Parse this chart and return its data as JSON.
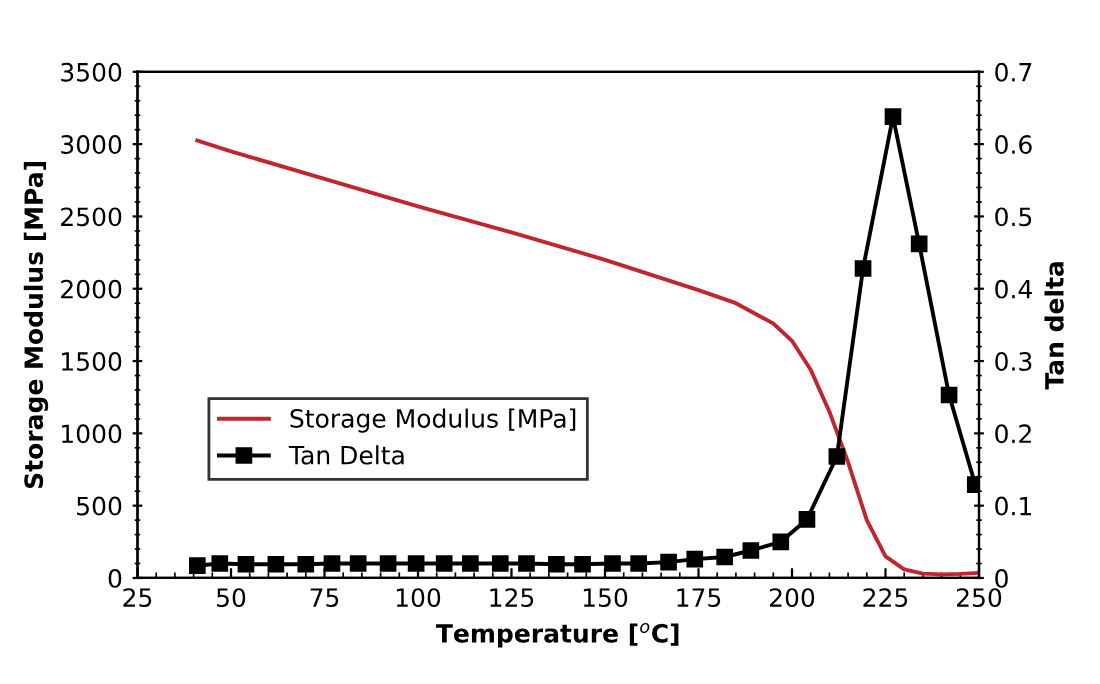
{
  "chart_data": {
    "type": "line",
    "xlabel": "Temperature [$^{o}$C]",
    "ylabel": "Storage Modulus [MPa]",
    "y2label": "Tan delta",
    "xlim": [
      25,
      250
    ],
    "xticks": [
      25,
      50,
      75,
      100,
      125,
      150,
      175,
      200,
      225,
      250
    ],
    "ylim": [
      0,
      3500
    ],
    "yticks": [
      0,
      500,
      1000,
      1500,
      2000,
      2500,
      3000,
      3500
    ],
    "y2lim": [
      0,
      0.7
    ],
    "y2ticks": [
      0,
      0.1,
      0.2,
      0.3,
      0.4,
      0.5,
      0.6,
      0.7
    ],
    "grid": false,
    "legend": "lower left",
    "series": [
      {
        "name": "Storage Modulus [MPa]",
        "color": "#c0262d",
        "marker": "none",
        "x": [
          41,
          50,
          75,
          100,
          125,
          150,
          175,
          185,
          195,
          200,
          205,
          210,
          215,
          220,
          225,
          230,
          235,
          240,
          245,
          250
        ],
        "values": [
          3025,
          2950,
          2760,
          2570,
          2390,
          2200,
          1990,
          1900,
          1760,
          1640,
          1440,
          1150,
          800,
          400,
          150,
          60,
          30,
          25,
          28,
          35
        ]
      },
      {
        "name": "Tan Delta",
        "color": "#000000",
        "marker": "square",
        "axis": "y2",
        "x": [
          41,
          47,
          54,
          62,
          70,
          77,
          84,
          92,
          99.5,
          107,
          114,
          122,
          129,
          137,
          144,
          152,
          159,
          167,
          174,
          182,
          189,
          197,
          204,
          212,
          219,
          227,
          234,
          242,
          249
        ],
        "values": [
          0.017,
          0.02,
          0.019,
          0.019,
          0.019,
          0.02,
          0.02,
          0.02,
          0.02,
          0.02,
          0.02,
          0.02,
          0.02,
          0.019,
          0.019,
          0.02,
          0.02,
          0.022,
          0.026,
          0.029,
          0.038,
          0.05,
          0.081,
          0.168,
          0.428,
          0.638,
          0.462,
          0.253,
          0.129
        ]
      }
    ]
  }
}
